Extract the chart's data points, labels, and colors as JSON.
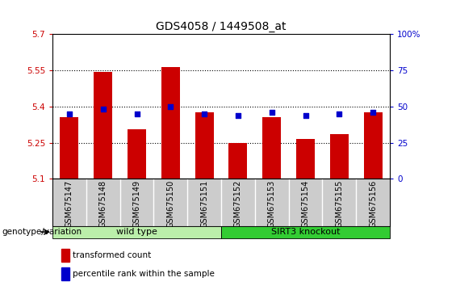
{
  "title": "GDS4058 / 1449508_at",
  "samples": [
    "GSM675147",
    "GSM675148",
    "GSM675149",
    "GSM675150",
    "GSM675151",
    "GSM675152",
    "GSM675153",
    "GSM675154",
    "GSM675155",
    "GSM675156"
  ],
  "bar_values": [
    5.355,
    5.545,
    5.305,
    5.565,
    5.375,
    5.248,
    5.355,
    5.265,
    5.285,
    5.375
  ],
  "percentile_values": [
    45,
    48,
    45,
    50,
    45,
    44,
    46,
    44,
    45,
    46
  ],
  "ylim": [
    5.1,
    5.7
  ],
  "yticks": [
    5.1,
    5.25,
    5.4,
    5.55,
    5.7
  ],
  "ytick_labels": [
    "5.1",
    "5.25",
    "5.4",
    "5.55",
    "5.7"
  ],
  "right_ylim": [
    0,
    100
  ],
  "right_yticks": [
    0,
    25,
    50,
    75,
    100
  ],
  "right_ytick_labels": [
    "0",
    "25",
    "50",
    "75",
    "100%"
  ],
  "bar_color": "#cc0000",
  "dot_color": "#0000cc",
  "left_tick_color": "#cc0000",
  "right_tick_color": "#0000cc",
  "groups": [
    {
      "label": "wild type",
      "start": 0,
      "end": 4,
      "color": "#bbeeaa"
    },
    {
      "label": "SIRT3 knockout",
      "start": 5,
      "end": 9,
      "color": "#33cc33"
    }
  ],
  "legend_items": [
    {
      "label": "transformed count",
      "color": "#cc0000"
    },
    {
      "label": "percentile rank within the sample",
      "color": "#0000cc"
    }
  ],
  "genotype_label": "genotype/variation",
  "background_color": "#ffffff",
  "plot_bg_color": "#ffffff",
  "xtick_bg_color": "#cccccc"
}
